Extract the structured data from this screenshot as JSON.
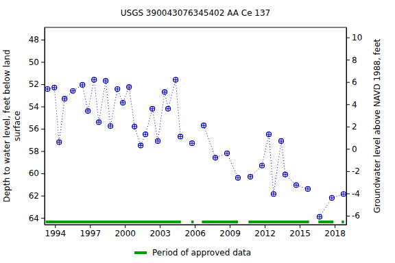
{
  "chart_data": {
    "type": "line",
    "title": "USGS 390043076345402 AA Ce 137",
    "ylabel": [
      "Depth to water level, feet below land",
      "surface"
    ],
    "y2label": "Groundwater level above NAVD 1988, feet",
    "x": [
      1993.35,
      1993.94,
      1994.35,
      1994.82,
      1995.53,
      1996.35,
      1996.82,
      1997.35,
      1997.76,
      1998.35,
      1998.76,
      1999.35,
      1999.82,
      2000.35,
      2000.82,
      2001.35,
      2001.76,
      2002.35,
      2002.82,
      2003.41,
      2003.7,
      2004.35,
      2004.76,
      null,
      2005.76,
      null,
      2006.76,
      2007.76,
      2008.76,
      2009.7,
      null,
      2010.76,
      2011.76,
      2012.35,
      2012.76,
      2013.41,
      2013.76,
      2014.7,
      2015.7,
      null,
      2016.7,
      2017.76,
      2018.76
    ],
    "series": [
      {
        "color": "#0000bb",
        "marker": "circle",
        "line_style": "dotted",
        "values": [
          52.43,
          52.3,
          57.2,
          53.3,
          52.6,
          52.06,
          54.4,
          51.6,
          55.4,
          51.7,
          55.75,
          52.43,
          53.66,
          52.25,
          55.8,
          57.5,
          56.5,
          54.2,
          57.1,
          52.7,
          54.2,
          51.6,
          56.7,
          null,
          57.3,
          null,
          55.7,
          58.6,
          58.2,
          60.4,
          null,
          60.3,
          59.3,
          56.5,
          61.85,
          57.1,
          60.1,
          61.05,
          61.4,
          null,
          63.9,
          62.2,
          61.85
        ]
      }
    ],
    "approved_periods": {
      "name": "Period of approved data",
      "color": "#00a000",
      "periods": [
        [
          1993.2,
          2004.8
        ],
        [
          2005.7,
          2005.9
        ],
        [
          2006.6,
          2009.7
        ],
        [
          2010.6,
          2015.8
        ],
        [
          2016.6,
          2017.9
        ],
        [
          2018.6,
          2018.8
        ]
      ]
    },
    "xlim": [
      1993.1,
      2019.0
    ],
    "xticks": [
      1994,
      1997,
      2000,
      2003,
      2006,
      2009,
      2012,
      2015,
      2018
    ],
    "ylim": [
      46.9,
      64.6
    ],
    "yticks": [
      48,
      50,
      52,
      54,
      56,
      58,
      60,
      62,
      64
    ],
    "y2lim": [
      10.9,
      -6.8
    ],
    "y2ticks": [
      10,
      8,
      6,
      4,
      2,
      0,
      -2,
      -4,
      -6
    ],
    "grid": false
  }
}
